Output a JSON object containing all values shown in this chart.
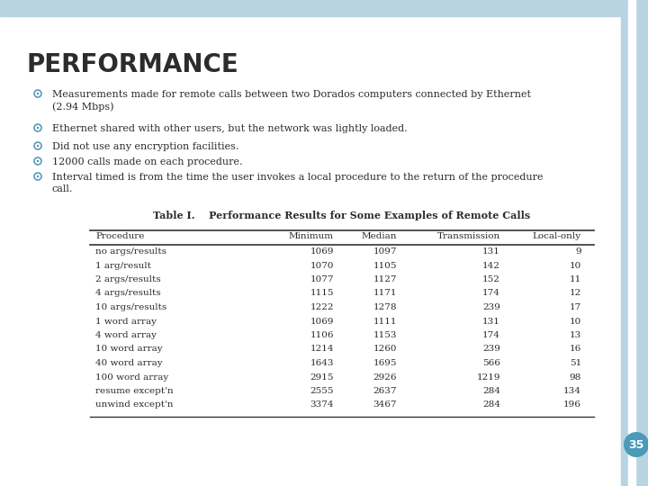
{
  "title": "PERFORMANCE",
  "bullets": [
    "Measurements made for remote calls between two Dorados computers connected by Ethernet\n(2.94 Mbps)",
    "Ethernet shared with other users, but the network was lightly loaded.",
    "Did not use any encryption facilities.",
    "12000 calls made on each procedure.",
    "Interval timed is from the time the user invokes a local procedure to the return of the procedure\ncall."
  ],
  "table_title": "Table I.    Performance Results for Some Examples of Remote Calls",
  "table_headers": [
    "Procedure",
    "Minimum",
    "Median",
    "Transmission",
    "Local-only"
  ],
  "table_rows": [
    [
      "no args/results",
      "1069",
      "1097",
      "131",
      "9"
    ],
    [
      "1 arg/result",
      "1070",
      "1105",
      "142",
      "10"
    ],
    [
      "2 args/results",
      "1077",
      "1127",
      "152",
      "11"
    ],
    [
      "4 args/results",
      "1115",
      "1171",
      "174",
      "12"
    ],
    [
      "10 args/results",
      "1222",
      "1278",
      "239",
      "17"
    ],
    [
      "1 word array",
      "1069",
      "1111",
      "131",
      "10"
    ],
    [
      "4 word array",
      "1106",
      "1153",
      "174",
      "13"
    ],
    [
      "10 word array",
      "1214",
      "1260",
      "239",
      "16"
    ],
    [
      "40 word array",
      "1643",
      "1695",
      "566",
      "51"
    ],
    [
      "100 word array",
      "2915",
      "2926",
      "1219",
      "98"
    ],
    [
      "resume except'n",
      "2555",
      "2637",
      "284",
      "134"
    ],
    [
      "unwind except'n",
      "3374",
      "3467",
      "284",
      "196"
    ]
  ],
  "bg_color": "#ffffff",
  "side_bar_color": "#b8d4e3",
  "side_bar_inner": "#cce0ec",
  "title_color": "#2c2c2c",
  "text_color": "#2c2c2c",
  "bullet_ring_color": "#5a9ab8",
  "slide_number": "35",
  "slide_number_bg": "#4a9ab8",
  "table_line_color": "#333333",
  "title_fontsize": 20,
  "bullet_fontsize": 8,
  "table_fontsize": 7.5
}
